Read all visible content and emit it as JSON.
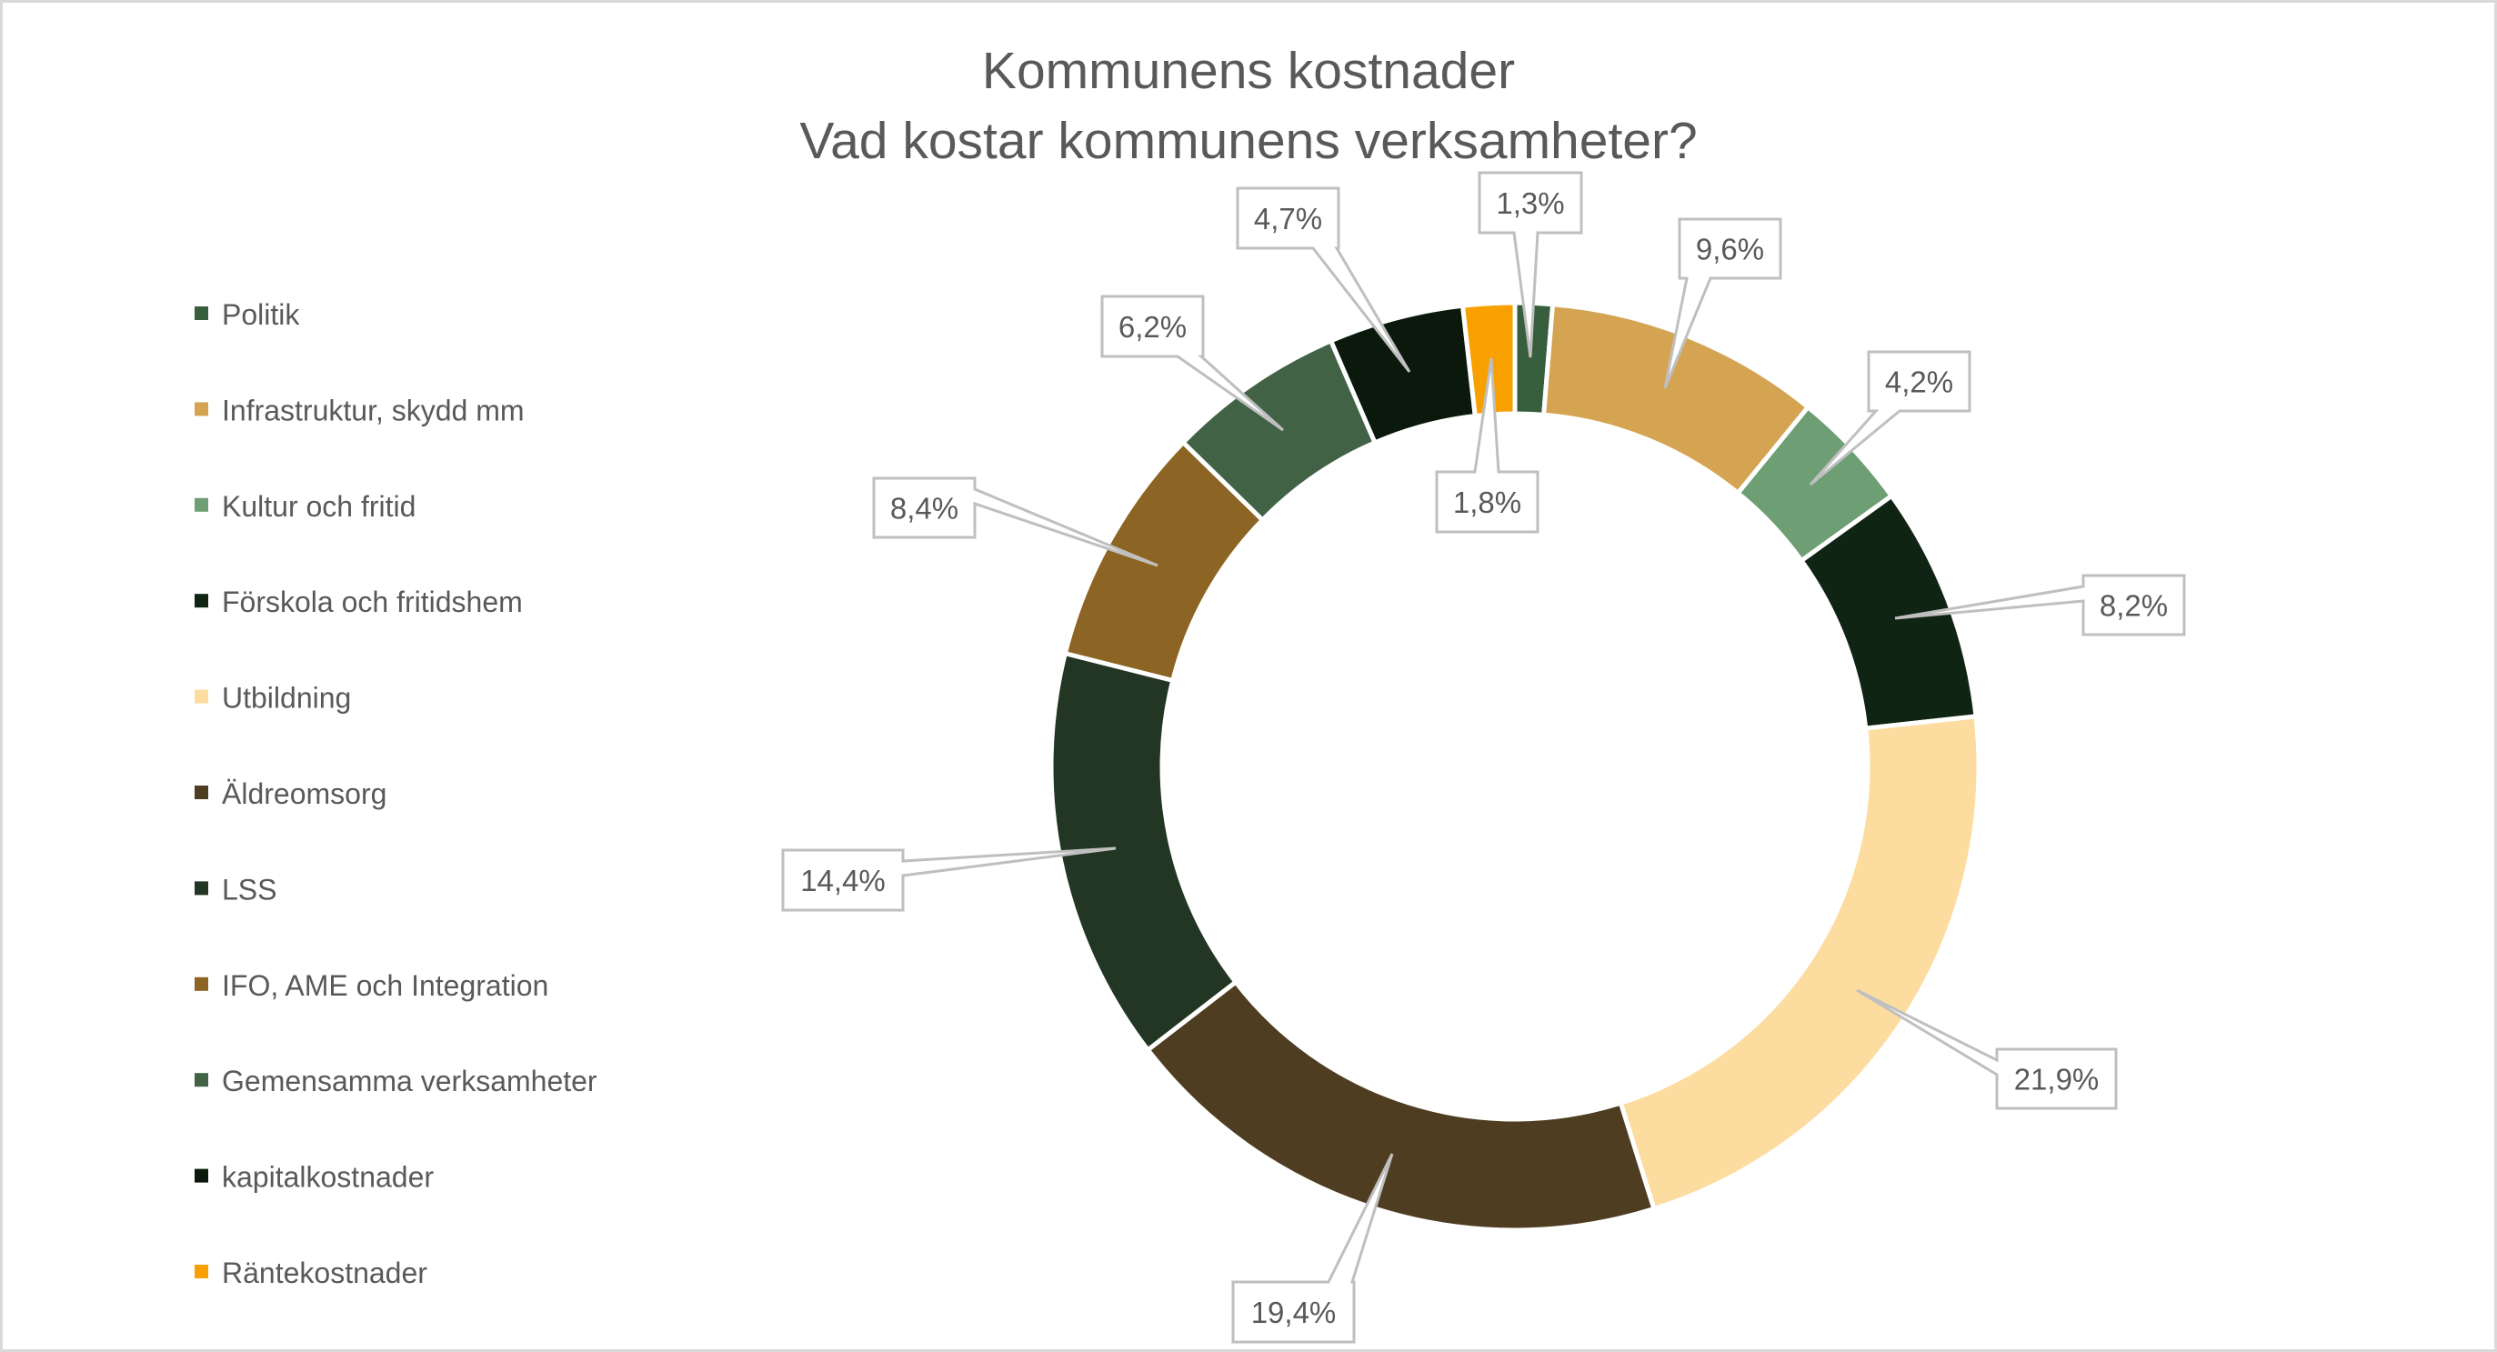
{
  "chart_data": {
    "type": "pie",
    "variant": "doughnut",
    "title": "Kommunens kostnader",
    "subtitle": "Vad kostar kommunens verksamheter?",
    "legend_position": "left",
    "value_format": "percent",
    "categories": [
      "Politik",
      "Infrastruktur, skydd mm",
      "Kultur och fritid",
      "Förskola och fritidshem",
      "Utbildning",
      "Äldreomsorg",
      "LSS",
      "IFO, AME och Integration",
      "Gemensamma verksamheter",
      "kapitalkostnader",
      "Räntekostnader"
    ],
    "values": [
      1.3,
      9.6,
      4.2,
      8.2,
      21.9,
      19.4,
      14.4,
      8.4,
      6.2,
      4.7,
      1.8
    ],
    "data_labels": [
      "1,3%",
      "9,6%",
      "4,2%",
      "8,2%",
      "21,9%",
      "19,4%",
      "14,4%",
      "8,4%",
      "6,2%",
      "4,7%",
      "1,8%"
    ],
    "colors": [
      "#375E3D",
      "#D4A452",
      "#6E9E74",
      "#102413",
      "#FDDCA0",
      "#4E3D21",
      "#223623",
      "#8C6423",
      "#426246",
      "#0A190C",
      "#F7A000"
    ]
  }
}
